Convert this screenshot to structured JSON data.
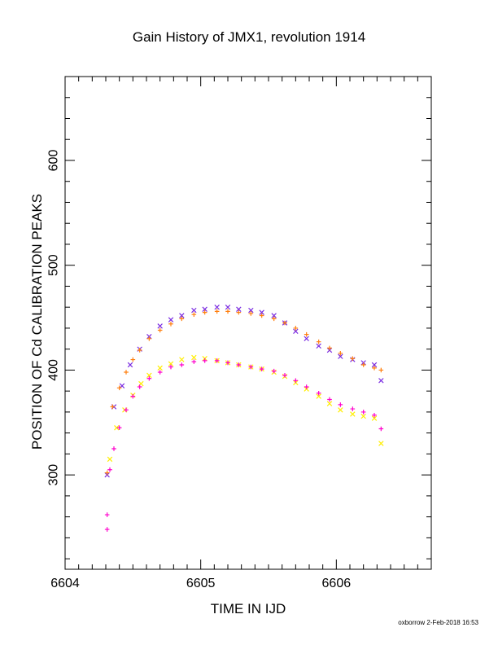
{
  "chart_data": {
    "type": "scatter",
    "title": "Gain History of JMX1, revolution 1914",
    "xlabel": "TIME IN IJD",
    "ylabel": "POSITION OF Cd CALIBRATION PEAKS",
    "xlim": [
      6604.0,
      6606.7
    ],
    "ylim": [
      210,
      680
    ],
    "x_ticks": [
      6604,
      6605,
      6606
    ],
    "y_ticks": [
      300,
      400,
      500,
      600
    ],
    "grid": false,
    "series": [
      {
        "color": "#7a2be2",
        "marker": "x",
        "x": [
          6604.31,
          6604.36,
          6604.42,
          6604.48,
          6604.55,
          6604.62,
          6604.7,
          6604.78,
          6604.86,
          6604.95,
          6605.03,
          6605.12,
          6605.2,
          6605.28,
          6605.37,
          6605.45,
          6605.54,
          6605.62,
          6605.7,
          6605.78,
          6605.87,
          6605.95,
          6606.03,
          6606.12,
          6606.2,
          6606.28,
          6606.33
        ],
        "y": [
          300,
          365,
          385,
          405,
          420,
          432,
          442,
          448,
          452,
          457,
          458,
          460,
          460,
          458,
          457,
          455,
          452,
          445,
          437,
          430,
          423,
          419,
          413,
          410,
          407,
          405,
          390
        ]
      },
      {
        "color": "#ff7f0e",
        "marker": "+",
        "x": [
          6604.31,
          6604.35,
          6604.4,
          6604.45,
          6604.5,
          6604.55,
          6604.62,
          6604.7,
          6604.78,
          6604.86,
          6604.95,
          6605.03,
          6605.12,
          6605.2,
          6605.28,
          6605.37,
          6605.45,
          6605.54,
          6605.62,
          6605.7,
          6605.78,
          6605.87,
          6605.95,
          6606.03,
          6606.12,
          6606.2,
          6606.28,
          6606.33
        ],
        "y": [
          302,
          365,
          383,
          398,
          410,
          419,
          430,
          438,
          444,
          449,
          453,
          455,
          456,
          456,
          455,
          454,
          452,
          449,
          445,
          440,
          434,
          427,
          421,
          416,
          411,
          405,
          402,
          400
        ]
      },
      {
        "color": "#ffee00",
        "marker": "x",
        "x": [
          6604.33,
          6604.38,
          6604.44,
          6604.5,
          6604.56,
          6604.62,
          6604.7,
          6604.78,
          6604.86,
          6604.95,
          6605.03,
          6605.12,
          6605.2,
          6605.28,
          6605.37,
          6605.45,
          6605.54,
          6605.62,
          6605.7,
          6605.78,
          6605.87,
          6605.95,
          6606.03,
          6606.12,
          6606.2,
          6606.28,
          6606.33
        ],
        "y": [
          315,
          345,
          362,
          376,
          387,
          395,
          402,
          406,
          410,
          412,
          411,
          409,
          407,
          405,
          403,
          401,
          398,
          394,
          388,
          382,
          375,
          368,
          362,
          358,
          356,
          354,
          330
        ]
      },
      {
        "color": "#ff00cc",
        "marker": "+",
        "x": [
          6604.31,
          6604.31,
          6604.33,
          6604.36,
          6604.4,
          6604.45,
          6604.5,
          6604.55,
          6604.62,
          6604.7,
          6604.78,
          6604.86,
          6604.95,
          6605.03,
          6605.12,
          6605.2,
          6605.28,
          6605.37,
          6605.45,
          6605.54,
          6605.62,
          6605.7,
          6605.78,
          6605.87,
          6605.95,
          6606.03,
          6606.12,
          6606.2,
          6606.28,
          6606.33
        ],
        "y": [
          248,
          262,
          305,
          325,
          345,
          362,
          375,
          384,
          392,
          398,
          403,
          405,
          408,
          409,
          409,
          407,
          405,
          403,
          401,
          399,
          395,
          390,
          384,
          378,
          372,
          367,
          363,
          360,
          357,
          344
        ]
      }
    ]
  },
  "footer": "oxborrow 2-Feb-2018 16:53"
}
